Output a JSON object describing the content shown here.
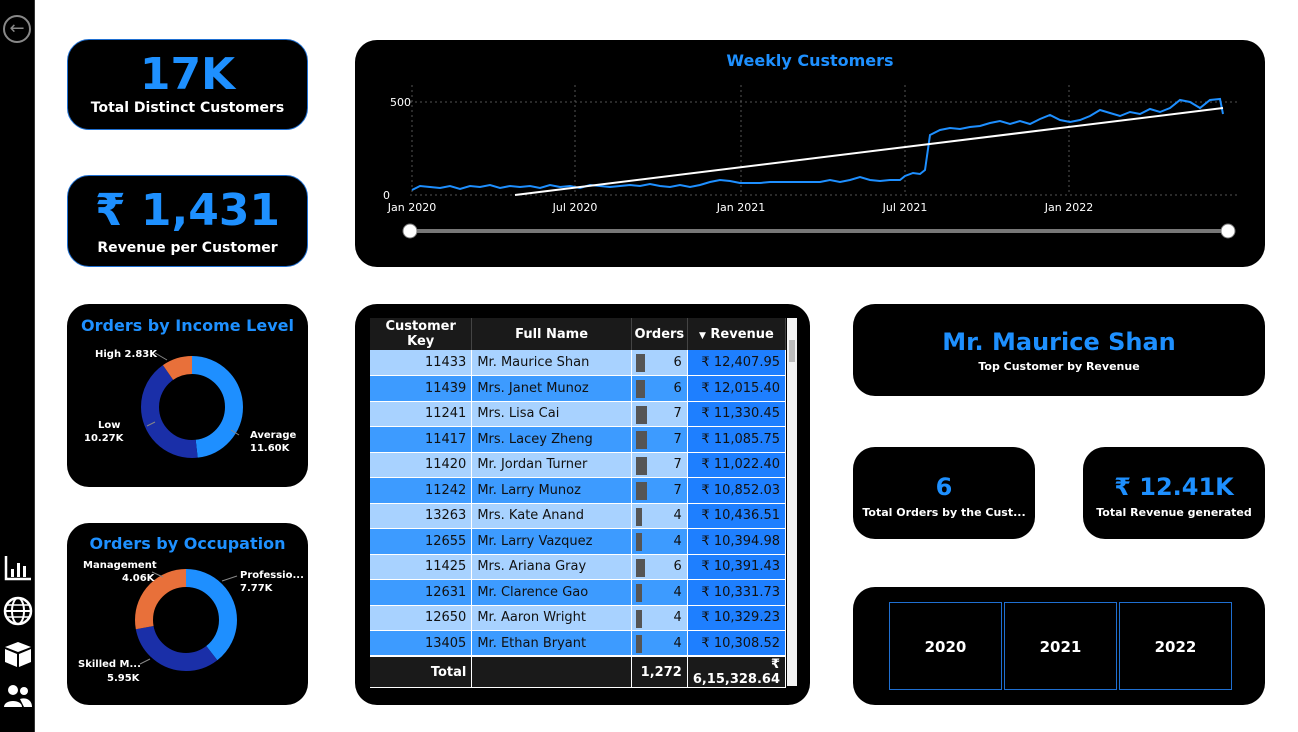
{
  "kpi": {
    "distinct_customers_value": "17K",
    "distinct_customers_label": "Total Distinct Customers",
    "revenue_per_customer_value": "₹ 1,431",
    "revenue_per_customer_label": "Revenue per Customer"
  },
  "weekly_chart": {
    "title": "Weekly Customers",
    "y_ticks": [
      "500",
      "0"
    ],
    "x_ticks": [
      "Jan 2020",
      "Jul 2020",
      "Jan 2021",
      "Jul 2021",
      "Jan 2022"
    ]
  },
  "income_chart": {
    "title": "Orders by Income Level",
    "labels": {
      "high": "High 2.83K",
      "low_name": "Low",
      "low_value": "10.27K",
      "avg_name": "Average",
      "avg_value": "11.60K"
    }
  },
  "occupation_chart": {
    "title": "Orders by Occupation",
    "labels": {
      "mgmt_name": "Management",
      "mgmt_value": "4.06K",
      "prof_name": "Professio...",
      "prof_value": "7.77K",
      "skilled_name": "Skilled M...",
      "skilled_value": "5.95K"
    }
  },
  "table": {
    "headers": [
      "Customer Key",
      "Full Name",
      "Orders",
      "Revenue"
    ],
    "rows": [
      {
        "key": "11433",
        "name": "Mr. Maurice Shan",
        "orders": "6",
        "revenue": "₹ 12,407.95"
      },
      {
        "key": "11439",
        "name": "Mrs. Janet Munoz",
        "orders": "6",
        "revenue": "₹ 12,015.40"
      },
      {
        "key": "11241",
        "name": "Mrs. Lisa Cai",
        "orders": "7",
        "revenue": "₹ 11,330.45"
      },
      {
        "key": "11417",
        "name": "Mrs. Lacey Zheng",
        "orders": "7",
        "revenue": "₹ 11,085.75"
      },
      {
        "key": "11420",
        "name": "Mr. Jordan Turner",
        "orders": "7",
        "revenue": "₹ 11,022.40"
      },
      {
        "key": "11242",
        "name": "Mr. Larry Munoz",
        "orders": "7",
        "revenue": "₹ 10,852.03"
      },
      {
        "key": "13263",
        "name": "Mrs. Kate Anand",
        "orders": "4",
        "revenue": "₹ 10,436.51"
      },
      {
        "key": "12655",
        "name": "Mr. Larry Vazquez",
        "orders": "4",
        "revenue": "₹ 10,394.98"
      },
      {
        "key": "11425",
        "name": "Mrs. Ariana Gray",
        "orders": "6",
        "revenue": "₹ 10,391.43"
      },
      {
        "key": "12631",
        "name": "Mr. Clarence Gao",
        "orders": "4",
        "revenue": "₹ 10,331.73"
      },
      {
        "key": "12650",
        "name": "Mr. Aaron Wright",
        "orders": "4",
        "revenue": "₹ 10,329.23"
      },
      {
        "key": "13405",
        "name": "Mr. Ethan Bryant",
        "orders": "4",
        "revenue": "₹ 10,308.52"
      }
    ],
    "total_label": "Total",
    "total_orders": "1,272",
    "total_revenue": "₹ 6,15,328.64"
  },
  "top_customer": {
    "name": "Mr. Maurice Shan",
    "label": "Top Customer by Revenue",
    "orders_value": "6",
    "orders_label": "Total Orders by the Cust...",
    "revenue_value": "₹ 12.41K",
    "revenue_label": "Total Revenue generated"
  },
  "years": [
    "2020",
    "2021",
    "2022"
  ],
  "colors": {
    "accent": "#1e90ff",
    "orange": "#e8703a",
    "navy": "#1a2fa8"
  }
}
